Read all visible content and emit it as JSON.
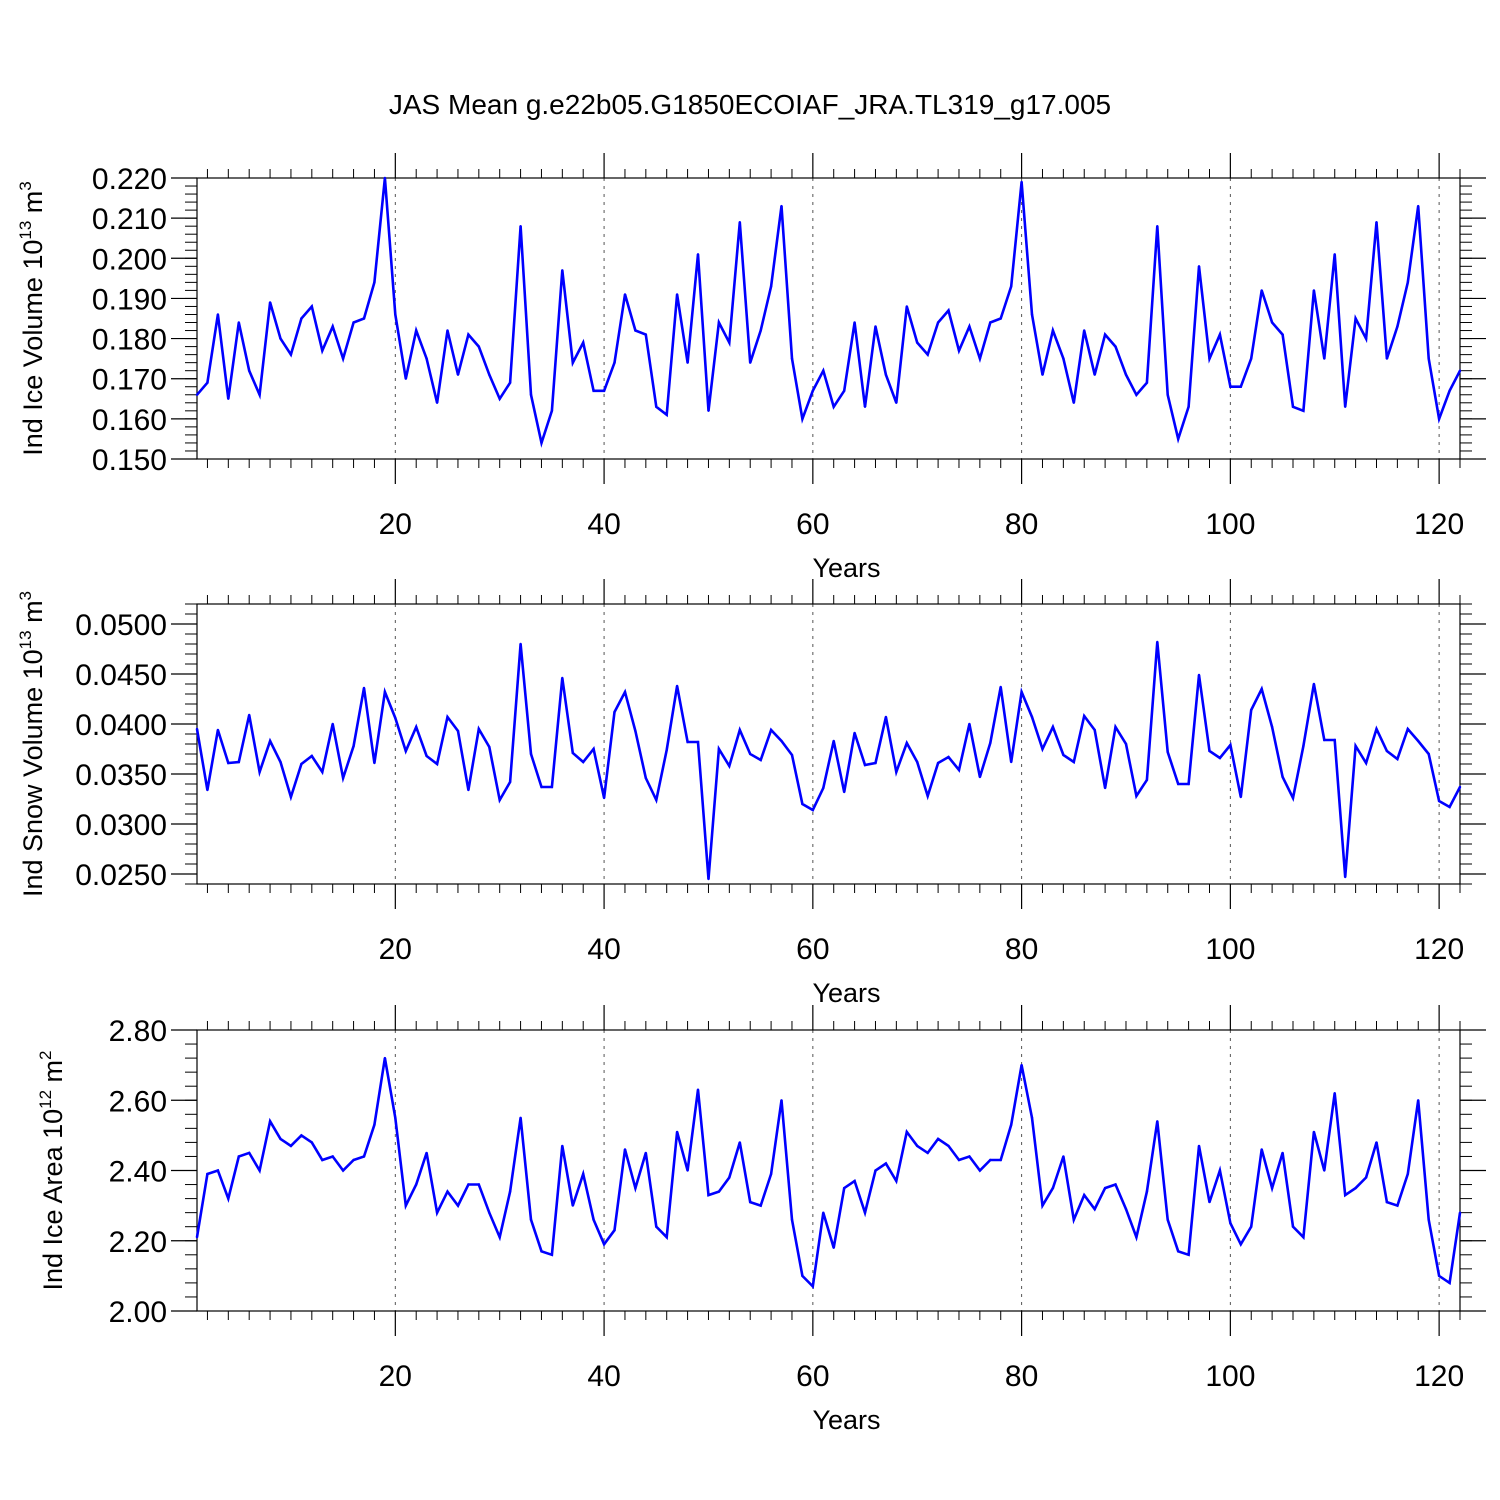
{
  "chart_data": [
    {
      "type": "line",
      "title": "JAS Mean g.e22b05.G1850ECOIAF_JRA.TL319_g17.005",
      "ylabel": {
        "base": "Ind Ice Volume 10",
        "exp": "13",
        "unit": " m",
        "unit_exp": "3"
      },
      "xlabel": "Years",
      "xlim": [
        1,
        122
      ],
      "ylim": [
        0.15,
        0.22
      ],
      "yticks": [
        "0.150",
        "0.160",
        "0.170",
        "0.180",
        "0.190",
        "0.200",
        "0.210",
        "0.220"
      ],
      "xticks": [
        "20",
        "40",
        "60",
        "80",
        "100",
        "120"
      ],
      "grid": "dashed vertical at major x ticks",
      "color": "#0000ff",
      "series": [
        {
          "values": [
            0.166,
            0.169,
            0.186,
            0.165,
            0.184,
            0.172,
            0.166,
            0.189,
            0.18,
            0.176,
            0.185,
            0.188,
            0.177,
            0.183,
            0.175,
            0.184,
            0.185,
            0.194,
            0.22,
            0.186,
            0.17,
            0.182,
            0.175,
            0.164,
            0.182,
            0.171,
            0.181,
            0.178,
            0.171,
            0.165,
            0.169,
            0.208,
            0.166,
            0.154,
            0.162,
            0.197,
            0.174,
            0.179,
            0.167,
            0.167,
            0.174,
            0.191,
            0.182,
            0.181,
            0.163,
            0.161,
            0.191,
            0.174,
            0.201,
            0.162,
            0.184,
            0.179,
            0.209,
            0.174,
            0.182,
            0.193,
            0.213,
            0.175,
            0.16,
            0.167,
            0.172,
            0.163,
            0.167,
            0.184,
            0.163,
            0.183,
            0.171,
            0.164,
            0.188,
            0.179,
            0.176,
            0.184,
            0.187,
            0.177,
            0.183,
            0.175,
            0.184,
            0.185,
            0.193,
            0.219,
            0.186,
            0.171,
            0.182,
            0.175,
            0.164,
            0.182,
            0.171,
            0.181,
            0.178,
            0.171,
            0.166,
            0.169,
            0.208,
            0.166,
            0.155,
            0.163,
            0.198,
            0.175,
            0.181,
            0.168,
            0.168,
            0.175,
            0.192,
            0.184,
            0.181,
            0.163,
            0.162,
            0.192,
            0.175,
            0.201,
            0.163,
            0.185,
            0.18,
            0.209,
            0.175,
            0.183,
            0.194,
            0.213,
            0.175,
            0.16,
            0.167,
            0.172
          ]
        }
      ]
    },
    {
      "type": "line",
      "ylabel": {
        "base": "Ind Snow Volume 10",
        "exp": "13",
        "unit": " m",
        "unit_exp": "3"
      },
      "xlabel": "Years",
      "xlim": [
        1,
        122
      ],
      "ylim": [
        0.024,
        0.052
      ],
      "yticks": [
        "0.0250",
        "0.0300",
        "0.0350",
        "0.0400",
        "0.0450",
        "0.0500"
      ],
      "ytick_values": [
        0.025,
        0.03,
        0.035,
        0.04,
        0.045,
        0.05
      ],
      "xticks": [
        "20",
        "40",
        "60",
        "80",
        "100",
        "120"
      ],
      "grid": "dashed vertical at major x ticks",
      "color": "#0000ff",
      "series": [
        {
          "values": [
            0.0395,
            0.0334,
            0.0394,
            0.0361,
            0.0362,
            0.0409,
            0.0352,
            0.0383,
            0.0362,
            0.0327,
            0.036,
            0.0368,
            0.0352,
            0.04,
            0.0346,
            0.0378,
            0.0436,
            0.0361,
            0.0432,
            0.0406,
            0.0373,
            0.0397,
            0.0368,
            0.036,
            0.0407,
            0.0393,
            0.0334,
            0.0395,
            0.0377,
            0.0324,
            0.0342,
            0.048,
            0.037,
            0.0337,
            0.0337,
            0.0446,
            0.0371,
            0.0362,
            0.0375,
            0.0326,
            0.0412,
            0.0432,
            0.0393,
            0.0346,
            0.0324,
            0.0374,
            0.0438,
            0.0382,
            0.0382,
            0.0245,
            0.0375,
            0.0358,
            0.0394,
            0.037,
            0.0364,
            0.0394,
            0.0383,
            0.0369,
            0.032,
            0.0314,
            0.0336,
            0.0383,
            0.0332,
            0.0391,
            0.0359,
            0.0361,
            0.0407,
            0.0352,
            0.0381,
            0.0362,
            0.0328,
            0.0361,
            0.0367,
            0.0354,
            0.04,
            0.0347,
            0.0381,
            0.0437,
            0.0362,
            0.0432,
            0.0407,
            0.0375,
            0.0397,
            0.0369,
            0.0362,
            0.0408,
            0.0394,
            0.0336,
            0.0397,
            0.038,
            0.0328,
            0.0344,
            0.0482,
            0.0372,
            0.034,
            0.034,
            0.0449,
            0.0373,
            0.0366,
            0.0379,
            0.0327,
            0.0414,
            0.0435,
            0.0397,
            0.0347,
            0.0326,
            0.0378,
            0.044,
            0.0384,
            0.0384,
            0.0247,
            0.0378,
            0.0361,
            0.0395,
            0.0373,
            0.0365,
            0.0395,
            0.0383,
            0.037,
            0.0323,
            0.0317,
            0.0337
          ]
        }
      ]
    },
    {
      "type": "line",
      "ylabel": {
        "base": "Ind Ice Area 10",
        "exp": "12",
        "unit": " m",
        "unit_exp": "2"
      },
      "xlabel": "Years",
      "xlim": [
        1,
        122
      ],
      "ylim": [
        2.0,
        2.8
      ],
      "yticks": [
        "2.00",
        "2.20",
        "2.40",
        "2.60",
        "2.80"
      ],
      "xticks": [
        "20",
        "40",
        "60",
        "80",
        "100",
        "120"
      ],
      "grid": "dashed vertical at major x ticks",
      "color": "#0000ff",
      "series": [
        {
          "values": [
            2.21,
            2.39,
            2.4,
            2.32,
            2.44,
            2.45,
            2.4,
            2.54,
            2.49,
            2.47,
            2.5,
            2.48,
            2.43,
            2.44,
            2.4,
            2.43,
            2.44,
            2.53,
            2.72,
            2.55,
            2.3,
            2.36,
            2.45,
            2.28,
            2.34,
            2.3,
            2.36,
            2.36,
            2.28,
            2.21,
            2.34,
            2.55,
            2.26,
            2.17,
            2.16,
            2.47,
            2.3,
            2.39,
            2.26,
            2.19,
            2.23,
            2.46,
            2.35,
            2.45,
            2.24,
            2.21,
            2.51,
            2.4,
            2.63,
            2.33,
            2.34,
            2.38,
            2.48,
            2.31,
            2.3,
            2.39,
            2.6,
            2.26,
            2.1,
            2.07,
            2.28,
            2.18,
            2.35,
            2.37,
            2.28,
            2.4,
            2.42,
            2.37,
            2.51,
            2.47,
            2.45,
            2.49,
            2.47,
            2.43,
            2.44,
            2.4,
            2.43,
            2.43,
            2.53,
            2.7,
            2.55,
            2.3,
            2.35,
            2.44,
            2.26,
            2.33,
            2.29,
            2.35,
            2.36,
            2.29,
            2.21,
            2.34,
            2.54,
            2.26,
            2.17,
            2.16,
            2.47,
            2.31,
            2.4,
            2.25,
            2.19,
            2.24,
            2.46,
            2.35,
            2.45,
            2.24,
            2.21,
            2.51,
            2.4,
            2.62,
            2.33,
            2.35,
            2.38,
            2.48,
            2.31,
            2.3,
            2.39,
            2.6,
            2.26,
            2.1,
            2.08,
            2.28
          ]
        }
      ]
    }
  ]
}
